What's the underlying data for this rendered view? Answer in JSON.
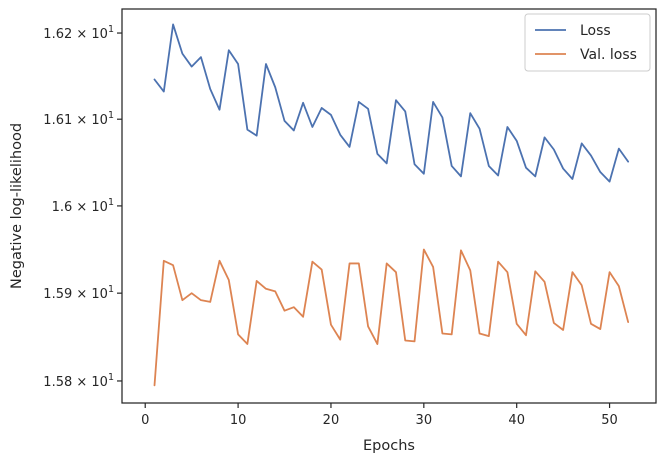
{
  "chart_data": {
    "type": "line",
    "title": "",
    "xlabel": "Epochs",
    "ylabel": "Negative log-likelihood",
    "yscale": "log",
    "xlim": [
      -2.5,
      55
    ],
    "ylim": [
      15.775,
      16.228
    ],
    "x_ticks": [
      0,
      10,
      20,
      30,
      40,
      50
    ],
    "x_tick_labels": [
      "0",
      "10",
      "20",
      "30",
      "40",
      "50"
    ],
    "y_ticks": [
      15.8,
      15.9,
      16.0,
      16.1,
      16.2
    ],
    "y_tick_labels": [
      {
        "mant": "1.58",
        "sup": "1"
      },
      {
        "mant": "1.59",
        "sup": "1"
      },
      {
        "mant": "1.6",
        "sup": "1"
      },
      {
        "mant": "1.61",
        "sup": "1"
      },
      {
        "mant": "1.62",
        "sup": "1"
      }
    ],
    "grid": false,
    "legend_position": "top-right",
    "series": [
      {
        "name": "Loss",
        "color": "#4c72b0",
        "x": [
          1,
          2,
          3,
          4,
          5,
          6,
          7,
          8,
          9,
          10,
          11,
          12,
          13,
          14,
          15,
          16,
          17,
          18,
          19,
          20,
          21,
          22,
          23,
          24,
          25,
          26,
          27,
          28,
          29,
          30,
          31,
          32,
          33,
          34,
          35,
          36,
          37,
          38,
          39,
          40,
          41,
          42,
          43,
          44,
          45,
          46,
          47,
          48,
          49,
          50,
          51,
          52
        ],
        "y": [
          16.146,
          16.132,
          16.21,
          16.176,
          16.161,
          16.172,
          16.135,
          16.111,
          16.18,
          16.164,
          16.088,
          16.081,
          16.164,
          16.137,
          16.098,
          16.087,
          16.119,
          16.091,
          16.113,
          16.105,
          16.082,
          16.068,
          16.12,
          16.112,
          16.06,
          16.049,
          16.122,
          16.109,
          16.048,
          16.037,
          16.12,
          16.102,
          16.046,
          16.034,
          16.107,
          16.089,
          16.046,
          16.035,
          16.091,
          16.075,
          16.044,
          16.034,
          16.079,
          16.065,
          16.043,
          16.031,
          16.072,
          16.058,
          16.039,
          16.028,
          16.066,
          16.051
        ]
      },
      {
        "name": "Val. loss",
        "color": "#dd8452",
        "x": [
          1,
          2,
          3,
          4,
          5,
          6,
          7,
          8,
          9,
          10,
          11,
          12,
          13,
          14,
          15,
          16,
          17,
          18,
          19,
          20,
          21,
          22,
          23,
          24,
          25,
          26,
          27,
          28,
          29,
          30,
          31,
          32,
          33,
          34,
          35,
          36,
          37,
          38,
          39,
          40,
          41,
          42,
          43,
          44,
          45,
          46,
          47,
          48,
          49,
          50,
          51,
          52
        ],
        "y": [
          15.795,
          15.937,
          15.932,
          15.892,
          15.9,
          15.892,
          15.89,
          15.937,
          15.915,
          15.853,
          15.842,
          15.914,
          15.905,
          15.902,
          15.88,
          15.884,
          15.873,
          15.936,
          15.927,
          15.864,
          15.847,
          15.934,
          15.934,
          15.862,
          15.842,
          15.934,
          15.924,
          15.846,
          15.845,
          15.95,
          15.93,
          15.854,
          15.853,
          15.949,
          15.926,
          15.854,
          15.851,
          15.936,
          15.924,
          15.865,
          15.852,
          15.925,
          15.913,
          15.866,
          15.858,
          15.924,
          15.909,
          15.865,
          15.859,
          15.924,
          15.908,
          15.867
        ]
      }
    ]
  }
}
